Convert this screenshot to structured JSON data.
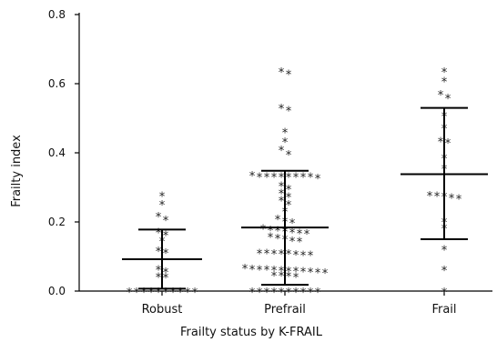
{
  "chart_data": {
    "type": "scatter",
    "title": "",
    "xlabel": "Frailty status by K-FRAIL",
    "ylabel": "Frailty index",
    "ylim": [
      0,
      0.8
    ],
    "yticks": [
      "0.0",
      "0.2",
      "0.4",
      "0.6",
      "0.8"
    ],
    "ytick_values": [
      0,
      0.2,
      0.4,
      0.6,
      0.8
    ],
    "categories": [
      "Robust",
      "Prefrail",
      "Frail"
    ],
    "marker": "*",
    "groups": [
      {
        "category": "Robust",
        "mean": 0.092,
        "sd_low": 0.007,
        "sd_high": 0.178,
        "points": [
          0.277,
          0.253,
          0.219,
          0.208,
          0.173,
          0.165,
          0.148,
          0.118,
          0.113,
          0.065,
          0.058,
          0.043,
          0.042,
          0.0,
          0.0,
          0.0,
          0.0,
          0.0,
          0.0,
          0.0,
          0.0,
          0.0,
          0.0
        ]
      },
      {
        "category": "Prefrail",
        "mean": 0.184,
        "sd_low": 0.018,
        "sd_high": 0.348,
        "points": [
          0.637,
          0.63,
          0.532,
          0.525,
          0.462,
          0.434,
          0.411,
          0.397,
          0.337,
          0.333,
          0.333,
          0.333,
          0.333,
          0.333,
          0.333,
          0.333,
          0.333,
          0.329,
          0.307,
          0.297,
          0.286,
          0.275,
          0.264,
          0.253,
          0.233,
          0.211,
          0.204,
          0.2,
          0.183,
          0.179,
          0.178,
          0.175,
          0.172,
          0.17,
          0.168,
          0.159,
          0.155,
          0.152,
          0.148,
          0.146,
          0.112,
          0.112,
          0.111,
          0.11,
          0.11,
          0.108,
          0.107,
          0.106,
          0.068,
          0.066,
          0.065,
          0.064,
          0.063,
          0.062,
          0.061,
          0.06,
          0.059,
          0.058,
          0.056,
          0.055,
          0.048,
          0.047,
          0.046,
          0.044,
          0.0,
          0.0,
          0.0,
          0.0,
          0.0,
          0.0,
          0.0,
          0.0,
          0.0,
          0.0
        ]
      },
      {
        "category": "Frail",
        "mean": 0.338,
        "sd_low": 0.15,
        "sd_high": 0.53,
        "points": [
          0.637,
          0.609,
          0.571,
          0.561,
          0.509,
          0.474,
          0.435,
          0.431,
          0.387,
          0.356,
          0.279,
          0.278,
          0.276,
          0.273,
          0.27,
          0.203,
          0.184,
          0.122,
          0.063,
          0.0
        ]
      }
    ]
  }
}
